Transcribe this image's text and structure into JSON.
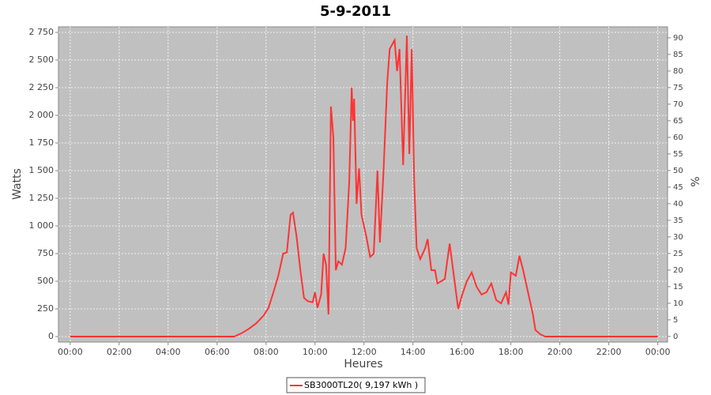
{
  "chart_data": {
    "type": "line",
    "title": "5-9-2011",
    "x_label": "Heures",
    "y_label": "Watts",
    "y2_label": "%",
    "x": [
      0,
      6.7,
      7.0,
      7.3,
      7.6,
      7.9,
      8.1,
      8.3,
      8.5,
      8.7,
      8.85,
      9.0,
      9.1,
      9.25,
      9.4,
      9.55,
      9.7,
      9.9,
      10.0,
      10.1,
      10.25,
      10.35,
      10.45,
      10.55,
      10.65,
      10.75,
      10.85,
      10.95,
      11.1,
      11.25,
      11.4,
      11.5,
      11.55,
      11.6,
      11.7,
      11.8,
      11.9,
      12.0,
      12.1,
      12.25,
      12.4,
      12.55,
      12.65,
      12.8,
      12.95,
      13.05,
      13.25,
      13.35,
      13.45,
      13.6,
      13.75,
      13.85,
      13.95,
      14.05,
      14.15,
      14.3,
      14.5,
      14.6,
      14.75,
      14.9,
      15.0,
      15.3,
      15.5,
      15.7,
      15.85,
      16.0,
      16.2,
      16.4,
      16.6,
      16.8,
      17.0,
      17.2,
      17.4,
      17.6,
      17.8,
      17.9,
      18.0,
      18.2,
      18.35,
      18.5,
      18.7,
      18.9,
      19.0,
      19.2,
      19.4,
      24
    ],
    "series": [
      {
        "name": "SB3000TL20( 9,197 kWh )",
        "color": "#ff3333",
        "values": [
          0,
          0,
          30,
          70,
          120,
          190,
          260,
          400,
          550,
          750,
          760,
          1100,
          1120,
          900,
          600,
          350,
          320,
          310,
          400,
          260,
          380,
          750,
          650,
          200,
          2080,
          1800,
          600,
          680,
          650,
          800,
          1400,
          2250,
          1950,
          2150,
          1200,
          1520,
          1100,
          1000,
          900,
          720,
          750,
          1500,
          850,
          1500,
          2300,
          2600,
          2680,
          2400,
          2600,
          1550,
          2720,
          1650,
          2600,
          1400,
          800,
          700,
          800,
          880,
          600,
          600,
          480,
          520,
          840,
          500,
          250,
          370,
          500,
          580,
          450,
          380,
          400,
          480,
          330,
          300,
          400,
          290,
          580,
          550,
          730,
          600,
          400,
          200,
          60,
          20,
          0,
          0
        ]
      }
    ],
    "xlim": [
      -0.48,
      24.4
    ],
    "xticks": [
      {
        "value": 0,
        "label": "00:00"
      },
      {
        "value": 2,
        "label": "02:00"
      },
      {
        "value": 4,
        "label": "04:00"
      },
      {
        "value": 6,
        "label": "06:00"
      },
      {
        "value": 8,
        "label": "08:00"
      },
      {
        "value": 10,
        "label": "10:00"
      },
      {
        "value": 12,
        "label": "12:00"
      },
      {
        "value": 14,
        "label": "14:00"
      },
      {
        "value": 16,
        "label": "16:00"
      },
      {
        "value": 18,
        "label": "18:00"
      },
      {
        "value": 20,
        "label": "20:00"
      },
      {
        "value": 22,
        "label": "22:00"
      },
      {
        "value": 24,
        "label": "00:00"
      }
    ],
    "ylim": [
      -50,
      2800
    ],
    "yticks": [
      0,
      250,
      500,
      750,
      {
        "value": 1000,
        "label": "1 000"
      },
      {
        "value": 1250,
        "label": "1 250"
      },
      {
        "value": 1500,
        "label": "1 500"
      },
      {
        "value": 1750,
        "label": "1 750"
      },
      {
        "value": 2000,
        "label": "2 000"
      },
      {
        "value": 2250,
        "label": "2 250"
      },
      {
        "value": 2500,
        "label": "2 500"
      },
      {
        "value": 2750,
        "label": "2 750"
      }
    ],
    "y2lim": [
      -1.7,
      93.3
    ],
    "y2ticks": [
      0,
      5,
      10,
      15,
      20,
      25,
      30,
      35,
      40,
      45,
      50,
      55,
      60,
      65,
      70,
      75,
      80,
      85,
      90
    ],
    "grid": true
  }
}
